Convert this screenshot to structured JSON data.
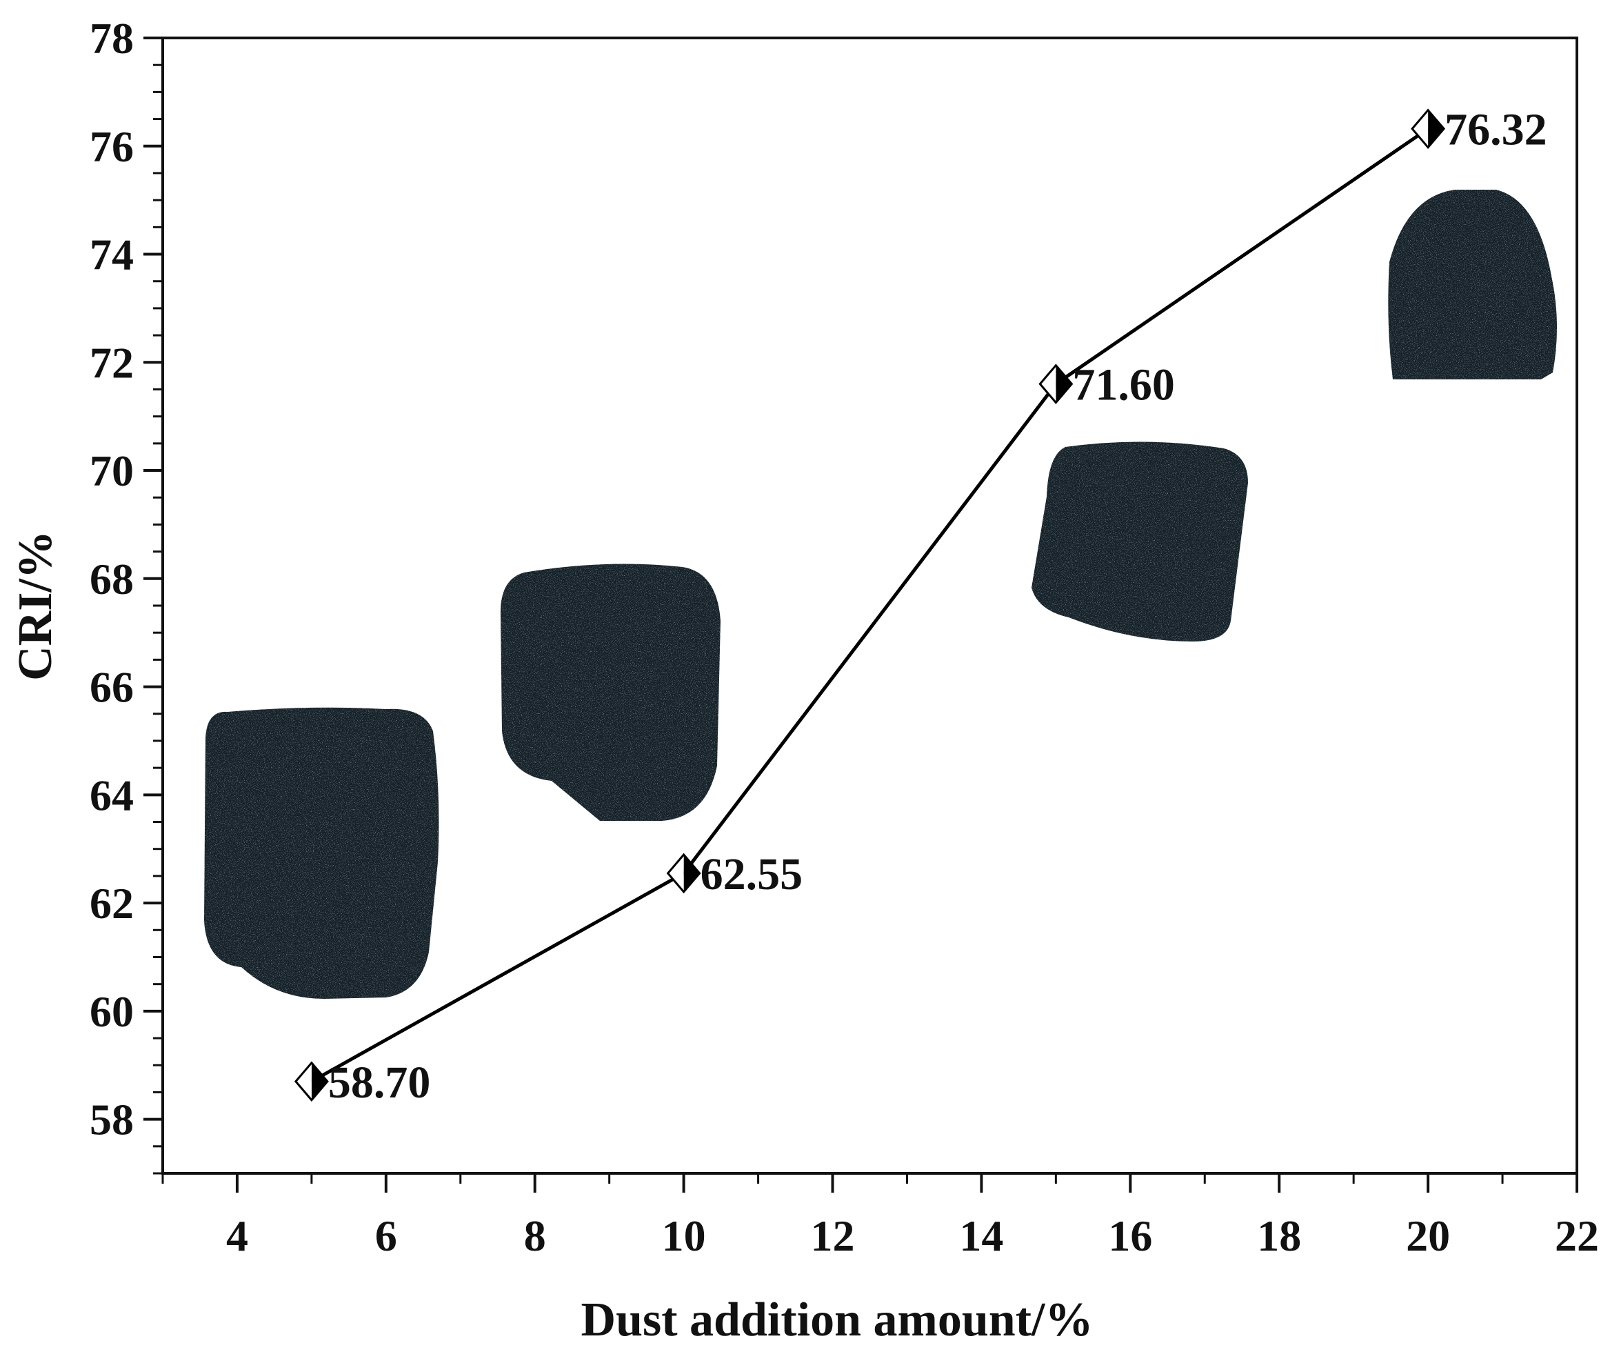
{
  "chart_data": {
    "type": "line",
    "xlabel": "Dust addition amount/%",
    "ylabel": "CRI/%",
    "xlim": [
      3,
      22
    ],
    "ylim": [
      57,
      78
    ],
    "xticks": [
      4,
      6,
      8,
      10,
      12,
      14,
      16,
      18,
      20,
      22
    ],
    "yticks": [
      58,
      60,
      62,
      64,
      66,
      68,
      70,
      72,
      74,
      76,
      78
    ],
    "x": [
      5,
      10,
      15,
      20
    ],
    "y": [
      58.7,
      62.55,
      71.6,
      76.32
    ],
    "data_labels": [
      "58.70",
      "62.55",
      "71.60",
      "76.32"
    ],
    "marker": "half-filled diamond",
    "line_color": "#000000",
    "sample_image_color": "#15202a",
    "grid": false,
    "legend": "none"
  }
}
